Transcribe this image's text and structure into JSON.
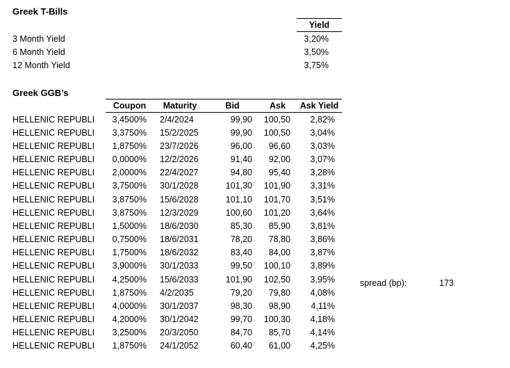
{
  "colors": {
    "background": "#ffffff",
    "text": "#000000",
    "rule_line": "#000000"
  },
  "tbills": {
    "title": "Greek T-Bills",
    "yield_header": "Yield",
    "rows": [
      {
        "label": "3 Month Yield",
        "value": "3,20%"
      },
      {
        "label": "6 Month Yield",
        "value": "3,50%"
      },
      {
        "label": "12 Month Yield",
        "value": "3,75%"
      }
    ]
  },
  "ggb": {
    "title": "Greek GGB’s",
    "headers": {
      "coupon": "Coupon",
      "maturity": "Maturity",
      "bid": "Bid",
      "ask": "Ask",
      "ask_yield": "Ask Yield"
    },
    "rows": [
      {
        "name": "HELLENIC REPUBLI",
        "coupon": "3,4500%",
        "maturity": "2/4/2024",
        "bid": "99,90",
        "ask": "100,50",
        "ask_yield": "2,82%"
      },
      {
        "name": "HELLENIC REPUBLI",
        "coupon": "3,3750%",
        "maturity": "15/2/2025",
        "bid": "99,90",
        "ask": "100,50",
        "ask_yield": "3,04%"
      },
      {
        "name": "HELLENIC REPUBLI",
        "coupon": "1,8750%",
        "maturity": "23/7/2026",
        "bid": "96,00",
        "ask": "96,60",
        "ask_yield": "3,03%"
      },
      {
        "name": "HELLENIC REPUBLI",
        "coupon": "0,0000%",
        "maturity": "12/2/2026",
        "bid": "91,40",
        "ask": "92,00",
        "ask_yield": "3,07%"
      },
      {
        "name": "HELLENIC REPUBLI",
        "coupon": "2,0000%",
        "maturity": "22/4/2027",
        "bid": "94,80",
        "ask": "95,40",
        "ask_yield": "3,28%"
      },
      {
        "name": "HELLENIC REPUBLI",
        "coupon": "3,7500%",
        "maturity": "30/1/2028",
        "bid": "101,30",
        "ask": "101,90",
        "ask_yield": "3,31%"
      },
      {
        "name": "HELLENIC REPUBLI",
        "coupon": "3,8750%",
        "maturity": "15/6/2028",
        "bid": "101,10",
        "ask": "101,70",
        "ask_yield": "3,51%"
      },
      {
        "name": "HELLENIC REPUBLI",
        "coupon": "3,8750%",
        "maturity": "12/3/2029",
        "bid": "100,60",
        "ask": "101,20",
        "ask_yield": "3,64%"
      },
      {
        "name": "HELLENIC REPUBLI",
        "coupon": "1,5000%",
        "maturity": "18/6/2030",
        "bid": "85,30",
        "ask": "85,90",
        "ask_yield": "3,81%"
      },
      {
        "name": "HELLENIC REPUBLI",
        "coupon": "0,7500%",
        "maturity": "18/6/2031",
        "bid": "78,20",
        "ask": "78,80",
        "ask_yield": "3,86%"
      },
      {
        "name": "HELLENIC REPUBLI",
        "coupon": "1,7500%",
        "maturity": "18/6/2032",
        "bid": "83,40",
        "ask": "84,00",
        "ask_yield": "3,87%"
      },
      {
        "name": "HELLENIC REPUBLI",
        "coupon": "3,9000%",
        "maturity": "30/1/2033",
        "bid": "99,50",
        "ask": "100,10",
        "ask_yield": "3,89%"
      },
      {
        "name": "HELLENIC REPUBLI",
        "coupon": "4,2500%",
        "maturity": "15/6/2033",
        "bid": "101,90",
        "ask": "102,50",
        "ask_yield": "3,95%"
      },
      {
        "name": "HELLENIC REPUBLI",
        "coupon": "1,8750%",
        "maturity": "4/2/2035",
        "bid": "79,20",
        "ask": "79,80",
        "ask_yield": "4,08%"
      },
      {
        "name": "HELLENIC REPUBLI",
        "coupon": "4,0000%",
        "maturity": "30/1/2037",
        "bid": "98,30",
        "ask": "98,90",
        "ask_yield": "4,11%"
      },
      {
        "name": "HELLENIC REPUBLI",
        "coupon": "4,2000%",
        "maturity": "30/1/2042",
        "bid": "99,70",
        "ask": "100,30",
        "ask_yield": "4,18%"
      },
      {
        "name": "HELLENIC REPUBLI",
        "coupon": "3,2500%",
        "maturity": "20/3/2050",
        "bid": "84,70",
        "ask": "85,70",
        "ask_yield": "4,14%"
      },
      {
        "name": "HELLENIC REPUBLI",
        "coupon": "1,8750%",
        "maturity": "24/1/2052",
        "bid": "60,40",
        "ask": "61,00",
        "ask_yield": "4,25%"
      }
    ]
  },
  "spread": {
    "label": "spread (bp):",
    "value": "173"
  }
}
